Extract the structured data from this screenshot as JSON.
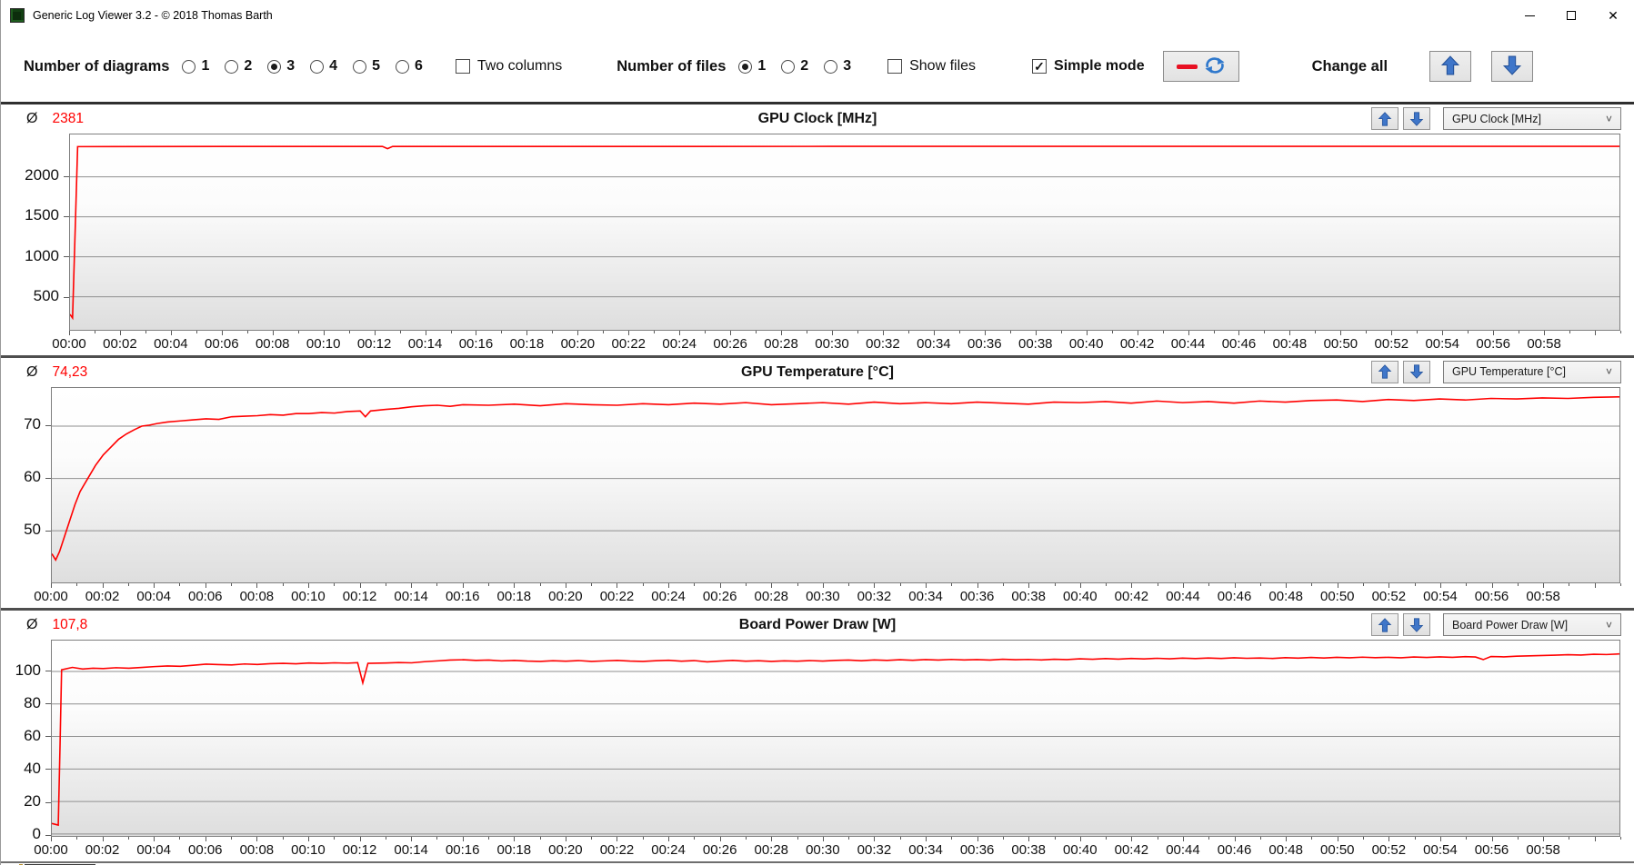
{
  "window": {
    "title": "Generic Log Viewer 3.2 - © 2018 Thomas Barth"
  },
  "icons": {
    "close": "✕",
    "chevron": "˅",
    "average_symbol": "Ø"
  },
  "colors": {
    "series": "#ff0000",
    "arrow_blue": "#3f76c9",
    "arrow_blue_dark": "#27549b",
    "refresh_blue": "#2f78cc",
    "red_dash": "#e81123"
  },
  "toolbar": {
    "diagrams_label": "Number of diagrams",
    "diagram_options": [
      {
        "label": "1",
        "selected": false
      },
      {
        "label": "2",
        "selected": false
      },
      {
        "label": "3",
        "selected": true
      },
      {
        "label": "4",
        "selected": false
      },
      {
        "label": "5",
        "selected": false
      },
      {
        "label": "6",
        "selected": false
      }
    ],
    "two_columns_label": "Two columns",
    "two_columns_checked": false,
    "files_label": "Number of files",
    "file_options": [
      {
        "label": "1",
        "selected": true
      },
      {
        "label": "2",
        "selected": false
      },
      {
        "label": "3",
        "selected": false
      }
    ],
    "show_files_label": "Show files",
    "show_files_checked": false,
    "simple_mode_label": "Simple mode",
    "simple_mode_checked": true,
    "change_all_label": "Change all"
  },
  "chart_data": [
    {
      "type": "line",
      "title": "GPU Clock [MHz]",
      "avg_value": "2381",
      "dropdown_value": "GPU Clock [MHz]",
      "legend_position": "none",
      "grid": true,
      "ylim": [
        90,
        2530
      ],
      "yticks": [
        500,
        1000,
        1500,
        2000
      ],
      "xlim_minutes": [
        0,
        61
      ],
      "xtick_labels": [
        "00:00",
        "00:02",
        "00:04",
        "00:06",
        "00:08",
        "00:10",
        "00:12",
        "00:14",
        "00:16",
        "00:18",
        "00:20",
        "00:22",
        "00:24",
        "00:26",
        "00:28",
        "00:30",
        "00:32",
        "00:34",
        "00:36",
        "00:38",
        "00:40",
        "00:42",
        "00:44",
        "00:46",
        "00:48",
        "00:50",
        "00:52",
        "00:54",
        "00:56",
        "00:58"
      ],
      "series": [
        {
          "name": "GPU Clock",
          "color": "#ff0000",
          "points": [
            [
              0,
              280
            ],
            [
              0.1,
              235
            ],
            [
              0.2,
              1300
            ],
            [
              0.3,
              2378
            ],
            [
              6,
              2380
            ],
            [
              12.3,
              2380
            ],
            [
              12.5,
              2352
            ],
            [
              12.7,
              2380
            ],
            [
              20,
              2380
            ],
            [
              30,
              2381
            ],
            [
              40,
              2381
            ],
            [
              50,
              2381
            ],
            [
              61,
              2382
            ]
          ]
        }
      ]
    },
    {
      "type": "line",
      "title": "GPU Temperature [°C]",
      "avg_value": "74,23",
      "dropdown_value": "GPU Temperature [°C]",
      "legend_position": "none",
      "grid": true,
      "ylim": [
        40,
        77.3
      ],
      "yticks": [
        50,
        60,
        70
      ],
      "xlim_minutes": [
        0,
        61
      ],
      "xtick_labels": [
        "00:00",
        "00:02",
        "00:04",
        "00:06",
        "00:08",
        "00:10",
        "00:12",
        "00:14",
        "00:16",
        "00:18",
        "00:20",
        "00:22",
        "00:24",
        "00:26",
        "00:28",
        "00:30",
        "00:32",
        "00:34",
        "00:36",
        "00:38",
        "00:40",
        "00:42",
        "00:44",
        "00:46",
        "00:48",
        "00:50",
        "00:52",
        "00:54",
        "00:56",
        "00:58"
      ],
      "series": [
        {
          "name": "GPU Temperature",
          "color": "#ff0000",
          "points": [
            [
              0,
              45.6
            ],
            [
              0.15,
              44.4
            ],
            [
              0.3,
              46
            ],
            [
              0.5,
              49
            ],
            [
              0.7,
              52
            ],
            [
              0.9,
              55
            ],
            [
              1.1,
              57.5
            ],
            [
              1.4,
              60
            ],
            [
              1.7,
              62.5
            ],
            [
              2,
              64.5
            ],
            [
              2.3,
              66
            ],
            [
              2.6,
              67.5
            ],
            [
              2.9,
              68.5
            ],
            [
              3.2,
              69.3
            ],
            [
              3.5,
              70
            ],
            [
              3.8,
              70.2
            ],
            [
              4.1,
              70.5
            ],
            [
              4.5,
              70.8
            ],
            [
              5,
              71
            ],
            [
              5.5,
              71.2
            ],
            [
              6,
              71.4
            ],
            [
              6.5,
              71.3
            ],
            [
              7,
              71.8
            ],
            [
              7.5,
              71.9
            ],
            [
              8,
              72
            ],
            [
              8.5,
              72.2
            ],
            [
              9,
              72.1
            ],
            [
              9.5,
              72.4
            ],
            [
              10,
              72.4
            ],
            [
              10.5,
              72.6
            ],
            [
              11,
              72.5
            ],
            [
              11.5,
              72.8
            ],
            [
              12,
              72.9
            ],
            [
              12.2,
              71.8
            ],
            [
              12.4,
              72.9
            ],
            [
              13,
              73.2
            ],
            [
              13.5,
              73.4
            ],
            [
              14,
              73.7
            ],
            [
              14.5,
              73.9
            ],
            [
              15,
              74
            ],
            [
              15.5,
              73.8
            ],
            [
              16,
              74.1
            ],
            [
              17,
              74
            ],
            [
              18,
              74.2
            ],
            [
              19,
              73.9
            ],
            [
              20,
              74.3
            ],
            [
              21,
              74.1
            ],
            [
              22,
              74
            ],
            [
              23,
              74.3
            ],
            [
              24,
              74.1
            ],
            [
              25,
              74.4
            ],
            [
              26,
              74.2
            ],
            [
              27,
              74.5
            ],
            [
              28,
              74.1
            ],
            [
              29,
              74.3
            ],
            [
              30,
              74.5
            ],
            [
              31,
              74.2
            ],
            [
              32,
              74.6
            ],
            [
              33,
              74.3
            ],
            [
              34,
              74.5
            ],
            [
              35,
              74.3
            ],
            [
              36,
              74.6
            ],
            [
              37,
              74.4
            ],
            [
              38,
              74.2
            ],
            [
              39,
              74.6
            ],
            [
              40,
              74.5
            ],
            [
              41,
              74.7
            ],
            [
              42,
              74.4
            ],
            [
              43,
              74.8
            ],
            [
              44,
              74.5
            ],
            [
              45,
              74.7
            ],
            [
              46,
              74.4
            ],
            [
              47,
              74.8
            ],
            [
              48,
              74.6
            ],
            [
              49,
              74.9
            ],
            [
              50,
              75
            ],
            [
              51,
              74.7
            ],
            [
              52,
              75.1
            ],
            [
              53,
              74.9
            ],
            [
              54,
              75.2
            ],
            [
              55,
              75
            ],
            [
              56,
              75.3
            ],
            [
              57,
              75.2
            ],
            [
              58,
              75.4
            ],
            [
              59,
              75.3
            ],
            [
              60,
              75.5
            ],
            [
              61,
              75.6
            ]
          ]
        }
      ]
    },
    {
      "type": "line",
      "title": "Board Power Draw [W]",
      "avg_value": "107,8",
      "dropdown_value": "Board Power Draw [W]",
      "legend_position": "none",
      "grid": true,
      "ylim": [
        -1,
        119
      ],
      "yticks": [
        0,
        20,
        40,
        60,
        80,
        100
      ],
      "xlim_minutes": [
        0,
        61
      ],
      "xtick_labels": [
        "00:00",
        "00:02",
        "00:04",
        "00:06",
        "00:08",
        "00:10",
        "00:12",
        "00:14",
        "00:16",
        "00:18",
        "00:20",
        "00:22",
        "00:24",
        "00:26",
        "00:28",
        "00:30",
        "00:32",
        "00:34",
        "00:36",
        "00:38",
        "00:40",
        "00:42",
        "00:44",
        "00:46",
        "00:48",
        "00:50",
        "00:52",
        "00:54",
        "00:56",
        "00:58"
      ],
      "series": [
        {
          "name": "Board Power Draw",
          "color": "#ff0000",
          "points": [
            [
              0,
              6.5
            ],
            [
              0.25,
              5.5
            ],
            [
              0.32,
              55
            ],
            [
              0.38,
              101
            ],
            [
              0.8,
              102.5
            ],
            [
              1.2,
              101.5
            ],
            [
              1.6,
              102
            ],
            [
              2,
              101.8
            ],
            [
              2.5,
              102.3
            ],
            [
              3,
              102
            ],
            [
              3.5,
              102.5
            ],
            [
              4,
              103
            ],
            [
              4.5,
              103.4
            ],
            [
              5,
              103.2
            ],
            [
              5.5,
              103.8
            ],
            [
              6,
              104.5
            ],
            [
              6.5,
              104.2
            ],
            [
              7,
              104
            ],
            [
              7.5,
              104.6
            ],
            [
              8,
              104.3
            ],
            [
              8.5,
              104.8
            ],
            [
              9,
              105
            ],
            [
              9.5,
              104.7
            ],
            [
              10,
              105.2
            ],
            [
              10.5,
              105
            ],
            [
              11,
              105.3
            ],
            [
              11.5,
              105.1
            ],
            [
              11.9,
              105.4
            ],
            [
              12.1,
              93
            ],
            [
              12.3,
              105
            ],
            [
              13,
              105.2
            ],
            [
              13.5,
              105.5
            ],
            [
              14,
              105.3
            ],
            [
              14.5,
              106
            ],
            [
              15,
              106.5
            ],
            [
              15.5,
              107
            ],
            [
              16,
              107.2
            ],
            [
              16.5,
              106.8
            ],
            [
              17,
              107
            ],
            [
              17.5,
              106.5
            ],
            [
              18,
              106.8
            ],
            [
              18.5,
              106.4
            ],
            [
              19,
              106.2
            ],
            [
              19.5,
              106.6
            ],
            [
              20,
              106.3
            ],
            [
              20.5,
              106.7
            ],
            [
              21,
              106.2
            ],
            [
              21.5,
              106.5
            ],
            [
              22,
              106.8
            ],
            [
              22.5,
              106.4
            ],
            [
              23,
              106.2
            ],
            [
              23.5,
              106.6
            ],
            [
              24,
              106.9
            ],
            [
              24.5,
              106.3
            ],
            [
              25,
              106.7
            ],
            [
              25.5,
              105.9
            ],
            [
              26,
              106.4
            ],
            [
              26.5,
              106.8
            ],
            [
              27,
              106.3
            ],
            [
              27.5,
              106.6
            ],
            [
              28,
              106.2
            ],
            [
              28.5,
              106.5
            ],
            [
              29,
              106.3
            ],
            [
              29.5,
              106.7
            ],
            [
              30,
              106.4
            ],
            [
              30.5,
              106.8
            ],
            [
              31,
              107
            ],
            [
              31.5,
              106.6
            ],
            [
              32,
              107.1
            ],
            [
              32.5,
              106.8
            ],
            [
              33,
              107.2
            ],
            [
              33.5,
              106.9
            ],
            [
              34,
              107.3
            ],
            [
              34.5,
              107
            ],
            [
              35,
              107.4
            ],
            [
              35.5,
              107.1
            ],
            [
              36,
              107.3
            ],
            [
              36.5,
              107
            ],
            [
              37,
              107.5
            ],
            [
              37.5,
              107.2
            ],
            [
              38,
              107.4
            ],
            [
              38.5,
              107.1
            ],
            [
              39,
              107.5
            ],
            [
              39.5,
              107.3
            ],
            [
              40,
              107.8
            ],
            [
              40.5,
              107.5
            ],
            [
              41,
              107.9
            ],
            [
              41.5,
              107.6
            ],
            [
              42,
              108
            ],
            [
              42.5,
              107.7
            ],
            [
              43,
              108.1
            ],
            [
              43.5,
              107.8
            ],
            [
              44,
              108.2
            ],
            [
              44.5,
              107.9
            ],
            [
              45,
              108.3
            ],
            [
              45.5,
              108
            ],
            [
              46,
              108.4
            ],
            [
              46.5,
              108.1
            ],
            [
              47,
              108.3
            ],
            [
              47.5,
              108
            ],
            [
              48,
              108.5
            ],
            [
              48.5,
              108.2
            ],
            [
              49,
              108.6
            ],
            [
              49.5,
              108.3
            ],
            [
              50,
              108.7
            ],
            [
              50.5,
              108.4
            ],
            [
              51,
              108.8
            ],
            [
              51.5,
              108.5
            ],
            [
              52,
              108.7
            ],
            [
              52.5,
              108.4
            ],
            [
              53,
              108.9
            ],
            [
              53.5,
              108.6
            ],
            [
              54,
              109
            ],
            [
              54.5,
              108.7
            ],
            [
              55,
              109.1
            ],
            [
              55.4,
              108.9
            ],
            [
              55.7,
              107.3
            ],
            [
              56,
              109.2
            ],
            [
              56.5,
              109
            ],
            [
              57,
              109.4
            ],
            [
              57.5,
              109.6
            ],
            [
              58,
              109.8
            ],
            [
              58.5,
              110
            ],
            [
              59,
              110.3
            ],
            [
              59.5,
              110.1
            ],
            [
              60,
              110.6
            ],
            [
              60.5,
              110.4
            ],
            [
              61,
              110.8
            ]
          ]
        }
      ]
    }
  ]
}
